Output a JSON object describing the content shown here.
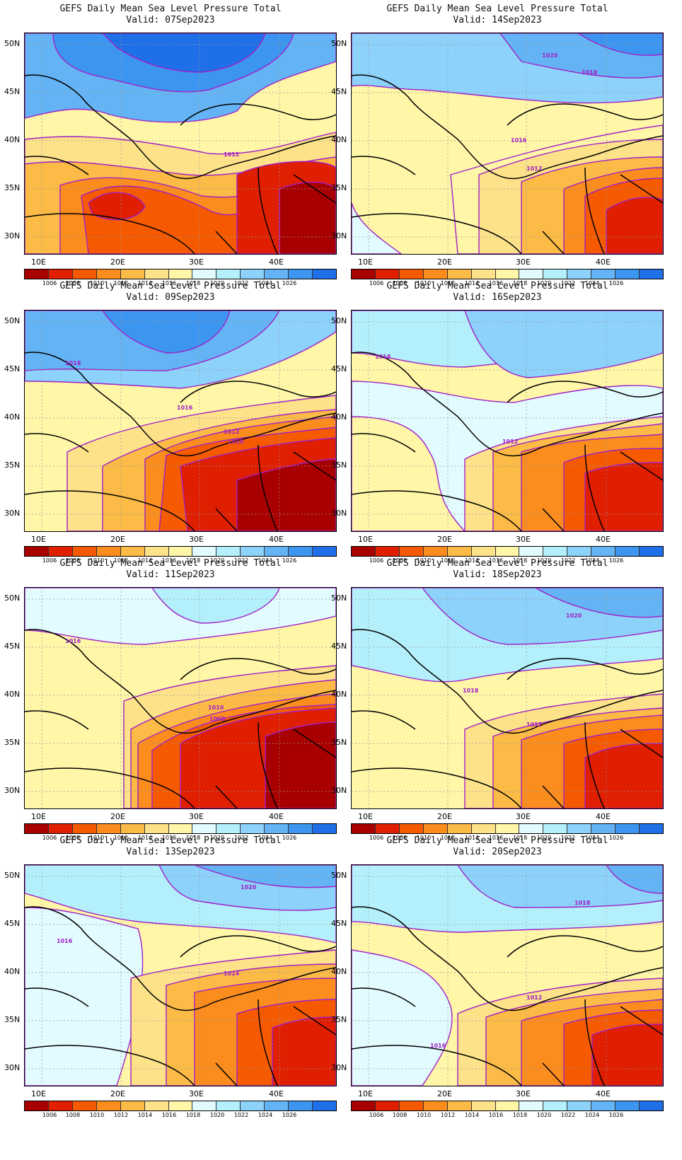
{
  "colorbar": {
    "labels": [
      "1006",
      "1008",
      "1010",
      "1012",
      "1014",
      "1016",
      "1018",
      "1020",
      "1022",
      "1024",
      "1026"
    ],
    "colors": [
      "#a80000",
      "#e01e00",
      "#f55a00",
      "#fb8c1e",
      "#fbbb46",
      "#fde28a",
      "#fff6a8",
      "#e2fbff",
      "#b4f0fc",
      "#8cd2fa",
      "#64b4f5",
      "#3c96f0",
      "#1f6fe8"
    ]
  },
  "lat_labels": [
    "50N",
    "45N",
    "40N",
    "35N",
    "30N"
  ],
  "lon_labels": [
    "10E",
    "20E",
    "30E",
    "40E"
  ],
  "panels": [
    {
      "title": "GEFS Daily Mean Sea Level Pressure Total",
      "valid": "Valid: 07Sep2023",
      "contour_labels": [
        {
          "text": "1012"
        }
      ]
    },
    {
      "title": "GEFS Daily Mean Sea Level Pressure Total",
      "valid": "Valid: 14Sep2023",
      "contour_labels": [
        {
          "text": "1020"
        },
        {
          "text": "1018"
        },
        {
          "text": "1016"
        },
        {
          "text": "1012"
        }
      ]
    },
    {
      "title": "GEFS Daily Mean Sea Level Pressure Total",
      "valid": "Valid: 09Sep2023",
      "contour_labels": [
        {
          "text": "1018"
        },
        {
          "text": "1016"
        },
        {
          "text": "1012"
        },
        {
          "text": "1010"
        }
      ]
    },
    {
      "title": "GEFS Daily Mean Sea Level Pressure Total",
      "valid": "Valid: 16Sep2023",
      "contour_labels": [
        {
          "text": "1018"
        },
        {
          "text": "1012"
        }
      ]
    },
    {
      "title": "GEFS Daily Mean Sea Level Pressure Total",
      "valid": "Valid: 11Sep2023",
      "contour_labels": [
        {
          "text": "1016"
        },
        {
          "text": "1010"
        },
        {
          "text": "1008"
        }
      ]
    },
    {
      "title": "GEFS Daily Mean Sea Level Pressure Total",
      "valid": "Valid: 18Sep2023",
      "contour_labels": [
        {
          "text": "1020"
        },
        {
          "text": "1018"
        },
        {
          "text": "1012"
        }
      ]
    },
    {
      "title": "GEFS Daily Mean Sea Level Pressure Total",
      "valid": "Valid: 13Sep2023",
      "contour_labels": [
        {
          "text": "1020"
        },
        {
          "text": "1016"
        },
        {
          "text": "1014"
        }
      ]
    },
    {
      "title": "GEFS Daily Mean Sea Level Pressure Total",
      "valid": "Valid: 20Sep2023",
      "contour_labels": [
        {
          "text": "1018"
        },
        {
          "text": "1012"
        },
        {
          "text": "1016"
        }
      ]
    }
  ]
}
